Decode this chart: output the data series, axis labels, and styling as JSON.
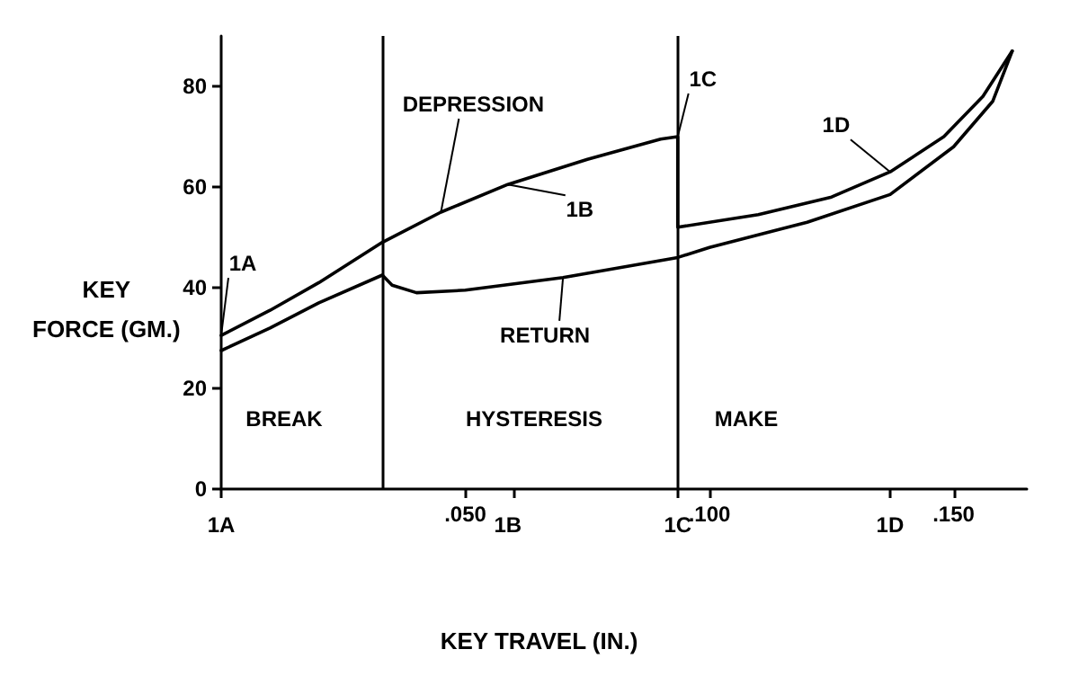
{
  "chart_data": {
    "type": "line",
    "xlabel": "KEY TRAVEL (IN.)",
    "ylabel": "KEY\nFORCE (GM.)",
    "xlim": [
      0,
      0.165
    ],
    "ylim": [
      0,
      90
    ],
    "xticks": [
      {
        "value": 0,
        "label": null
      },
      {
        "value": 0.05,
        "label": ".050"
      },
      {
        "value": 0.06,
        "label": null
      },
      {
        "value": 0.0935,
        "label": null
      },
      {
        "value": 0.1,
        "label": ".100"
      },
      {
        "value": 0.137,
        "label": null
      },
      {
        "value": 0.15,
        "label": ".150"
      }
    ],
    "yticks": [
      0,
      20,
      40,
      60,
      80
    ],
    "grid": false,
    "marker": "none",
    "line_style": "solid",
    "series": [
      {
        "color": "#000000",
        "x": [
          0,
          0.01,
          0.02,
          0.033,
          0.045,
          0.0587,
          0.075,
          0.09,
          0.0935,
          0.0935,
          0.11,
          0.125,
          0.137,
          0.148,
          0.156,
          0.162
        ],
        "values": [
          30.5,
          35.5,
          41,
          49,
          55,
          60.5,
          65.5,
          69.5,
          70,
          52,
          54.5,
          58,
          63,
          70,
          78,
          87
        ]
      },
      {
        "color": "#000000",
        "x": [
          0.162,
          0.158,
          0.15,
          0.137,
          0.12,
          0.1,
          0.0935,
          0.07,
          0.05,
          0.04,
          0.035,
          0.033,
          0.02,
          0.01,
          0
        ],
        "values": [
          87,
          77,
          68,
          58.5,
          53,
          48,
          46,
          42,
          39.5,
          39,
          40.5,
          42.5,
          37,
          32,
          27.5
        ]
      }
    ],
    "ref_lines": [
      {
        "axis": "x",
        "value": 0.033,
        "color": "#000000"
      },
      {
        "axis": "x",
        "value": 0.0935,
        "color": "#000000"
      }
    ],
    "annotations": [
      {
        "text": "DEPRESSION",
        "x": 0.045,
        "y": 55
      },
      {
        "text": "RETURN",
        "x": 0.07,
        "y": 42
      },
      {
        "text": "1A",
        "x": 0,
        "y": 30.5
      },
      {
        "text": "1B",
        "x": 0.0587,
        "y": 60.5
      },
      {
        "text": "1C",
        "x": 0.0935,
        "y": 70
      },
      {
        "text": "1D",
        "x": 0.137,
        "y": 63
      },
      "BREAK",
      "HYSTERESIS",
      "MAKE"
    ]
  }
}
